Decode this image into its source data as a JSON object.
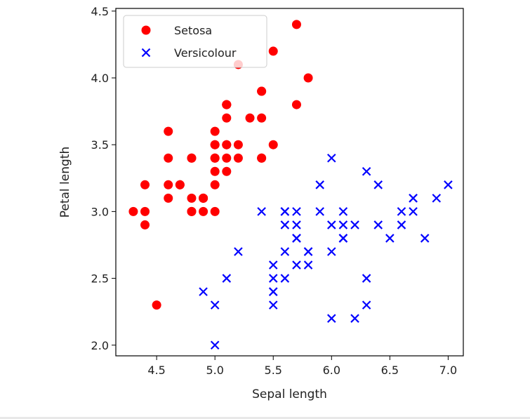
{
  "chart_data": {
    "type": "scatter",
    "title": "",
    "xlabel": "Sepal length",
    "ylabel": "Petal length",
    "xlim": [
      4.15,
      7.13
    ],
    "ylim": [
      1.92,
      4.52
    ],
    "xticks": [
      4.5,
      5.0,
      5.5,
      6.0,
      6.5,
      7.0
    ],
    "xtick_labels": [
      "4.5",
      "5.0",
      "5.5",
      "6.0",
      "6.5",
      "7.0"
    ],
    "yticks": [
      2.0,
      2.5,
      3.0,
      3.5,
      4.0,
      4.5
    ],
    "ytick_labels": [
      "2.0",
      "2.5",
      "3.0",
      "3.5",
      "4.0",
      "4.5"
    ],
    "grid": false,
    "legend_position": "top-left",
    "series": [
      {
        "name": "Setosa",
        "marker": "circle",
        "color": "#ff0000",
        "points": [
          [
            5.1,
            3.5
          ],
          [
            4.9,
            3.0
          ],
          [
            4.7,
            3.2
          ],
          [
            4.6,
            3.1
          ],
          [
            5.0,
            3.6
          ],
          [
            5.4,
            3.9
          ],
          [
            4.6,
            3.4
          ],
          [
            5.0,
            3.4
          ],
          [
            4.4,
            2.9
          ],
          [
            4.9,
            3.1
          ],
          [
            5.4,
            3.7
          ],
          [
            4.8,
            3.4
          ],
          [
            4.8,
            3.0
          ],
          [
            4.3,
            3.0
          ],
          [
            5.8,
            4.0
          ],
          [
            5.7,
            4.4
          ],
          [
            5.4,
            3.9
          ],
          [
            5.1,
            3.5
          ],
          [
            5.7,
            3.8
          ],
          [
            5.1,
            3.8
          ],
          [
            5.4,
            3.4
          ],
          [
            5.1,
            3.7
          ],
          [
            4.6,
            3.6
          ],
          [
            5.1,
            3.3
          ],
          [
            4.8,
            3.4
          ],
          [
            5.0,
            3.0
          ],
          [
            5.0,
            3.4
          ],
          [
            5.2,
            3.5
          ],
          [
            5.2,
            3.4
          ],
          [
            4.7,
            3.2
          ],
          [
            4.8,
            3.1
          ],
          [
            5.4,
            3.4
          ],
          [
            5.2,
            4.1
          ],
          [
            5.5,
            4.2
          ],
          [
            4.9,
            3.1
          ],
          [
            5.0,
            3.2
          ],
          [
            5.5,
            3.5
          ],
          [
            4.9,
            3.1
          ],
          [
            4.4,
            3.0
          ],
          [
            5.1,
            3.4
          ],
          [
            5.0,
            3.5
          ],
          [
            4.5,
            2.3
          ],
          [
            4.4,
            3.2
          ],
          [
            5.0,
            3.5
          ],
          [
            5.1,
            3.8
          ],
          [
            4.8,
            3.0
          ],
          [
            5.1,
            3.8
          ],
          [
            4.6,
            3.2
          ],
          [
            5.3,
            3.7
          ],
          [
            5.0,
            3.3
          ]
        ]
      },
      {
        "name": "Versicolour",
        "marker": "x",
        "color": "#0000ff",
        "points": [
          [
            7.0,
            3.2
          ],
          [
            6.4,
            3.2
          ],
          [
            6.9,
            3.1
          ],
          [
            5.5,
            2.3
          ],
          [
            6.5,
            2.8
          ],
          [
            5.7,
            2.8
          ],
          [
            6.3,
            3.3
          ],
          [
            4.9,
            2.4
          ],
          [
            6.6,
            2.9
          ],
          [
            5.2,
            2.7
          ],
          [
            5.0,
            2.0
          ],
          [
            5.9,
            3.0
          ],
          [
            6.0,
            2.2
          ],
          [
            6.1,
            2.9
          ],
          [
            5.6,
            2.9
          ],
          [
            6.7,
            3.1
          ],
          [
            5.6,
            3.0
          ],
          [
            5.8,
            2.7
          ],
          [
            6.2,
            2.2
          ],
          [
            5.6,
            2.5
          ],
          [
            5.9,
            3.2
          ],
          [
            6.1,
            2.8
          ],
          [
            6.3,
            2.5
          ],
          [
            6.1,
            2.8
          ],
          [
            6.4,
            2.9
          ],
          [
            6.6,
            3.0
          ],
          [
            6.8,
            2.8
          ],
          [
            6.7,
            3.0
          ],
          [
            6.0,
            2.9
          ],
          [
            5.7,
            2.6
          ],
          [
            5.5,
            2.4
          ],
          [
            5.5,
            2.4
          ],
          [
            5.8,
            2.7
          ],
          [
            6.0,
            2.7
          ],
          [
            5.4,
            3.0
          ],
          [
            6.0,
            3.4
          ],
          [
            6.7,
            3.1
          ],
          [
            6.3,
            2.3
          ],
          [
            5.6,
            3.0
          ],
          [
            5.5,
            2.5
          ],
          [
            5.5,
            2.6
          ],
          [
            6.1,
            3.0
          ],
          [
            5.8,
            2.6
          ],
          [
            5.0,
            2.3
          ],
          [
            5.6,
            2.7
          ],
          [
            5.7,
            3.0
          ],
          [
            5.7,
            2.9
          ],
          [
            6.2,
            2.9
          ],
          [
            5.1,
            2.5
          ],
          [
            5.7,
            2.8
          ]
        ]
      }
    ]
  }
}
